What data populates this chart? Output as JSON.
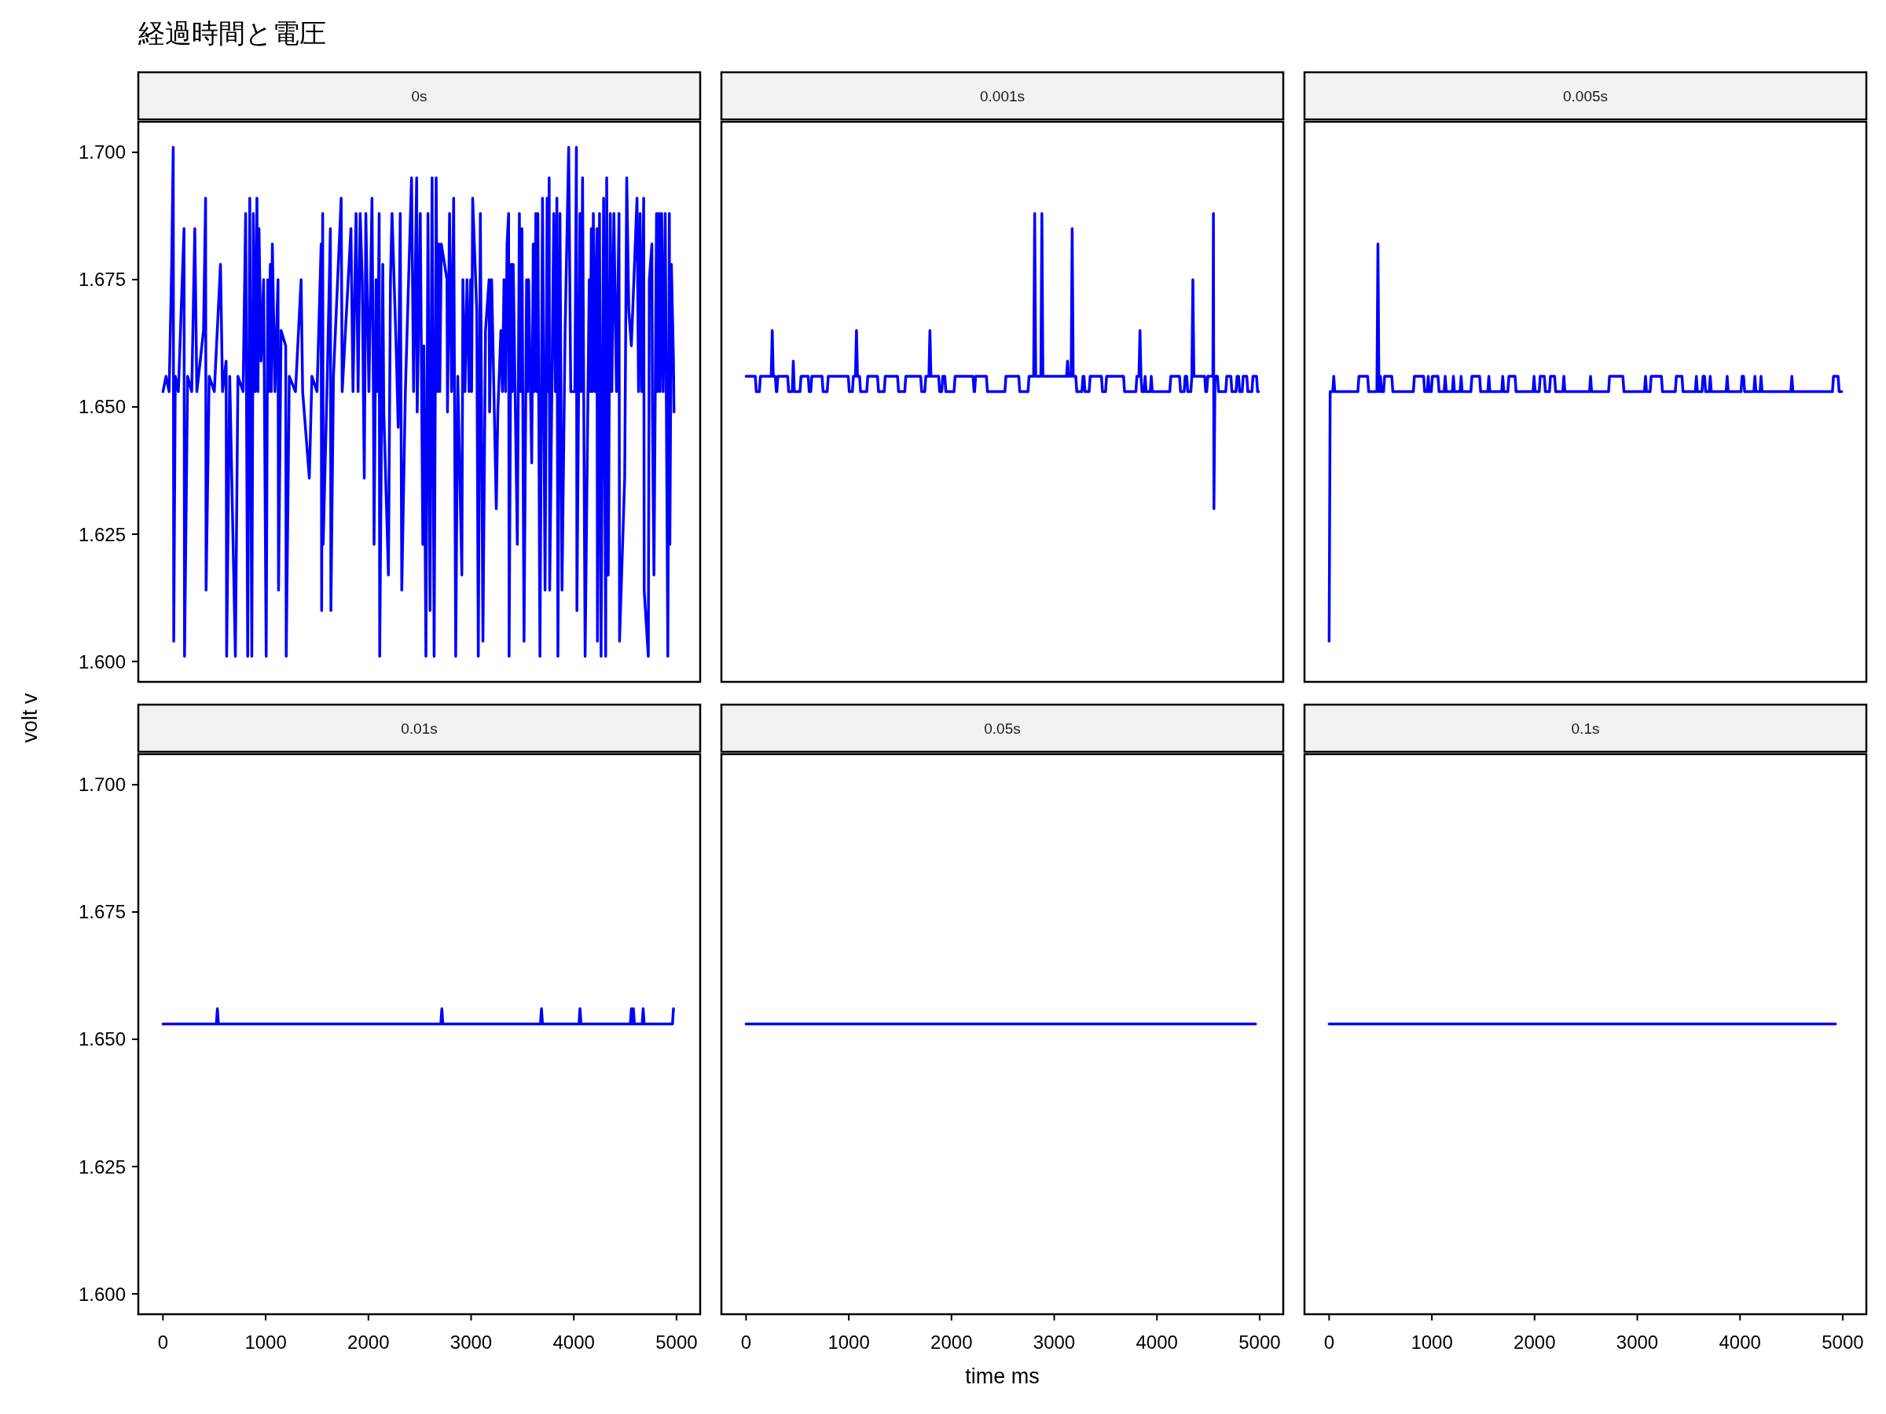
{
  "chart_data": [
    {
      "type": "line",
      "title": "経過時間と電圧",
      "subtitle": "0s",
      "ylabel": "volt v",
      "xlim": [
        -240,
        5230
      ],
      "ylim": [
        1.596,
        1.706
      ],
      "yticks": [
        {
          "value": 1.6,
          "label": "1.600"
        },
        {
          "value": 1.625,
          "label": "1.625"
        },
        {
          "value": 1.65,
          "label": "1.650"
        },
        {
          "value": 1.675,
          "label": "1.675"
        },
        {
          "value": 1.7,
          "label": "1.700"
        }
      ],
      "tick_labels": "y",
      "x": [
        0,
        30,
        60,
        85,
        100,
        105,
        120,
        150,
        205,
        210,
        240,
        280,
        310,
        330,
        395,
        415,
        420,
        450,
        500,
        560,
        580,
        615,
        620,
        650,
        705,
        730,
        780,
        805,
        825,
        845,
        865,
        880,
        898,
        915,
        925,
        935,
        955,
        980,
        1005,
        1020,
        1030,
        1045,
        1055,
        1065,
        1090,
        1120,
        1125,
        1150,
        1195,
        1200,
        1230,
        1290,
        1345,
        1360,
        1425,
        1450,
        1500,
        1540,
        1545,
        1555,
        1560,
        1600,
        1630,
        1635,
        1660,
        1735,
        1745,
        1830,
        1850,
        1880,
        1900,
        1920,
        1940,
        1960,
        1975,
        2005,
        2035,
        2050,
        2055,
        2075,
        2090,
        2105,
        2110,
        2140,
        2150,
        2195,
        2215,
        2230,
        2270,
        2290,
        2310,
        2325,
        2360,
        2420,
        2440,
        2470,
        2475,
        2505,
        2530,
        2540,
        2560,
        2580,
        2600,
        2620,
        2640,
        2660,
        2672,
        2685,
        2695,
        2710,
        2765,
        2770,
        2790,
        2810,
        2830,
        2850,
        2870,
        2910,
        2920,
        2940,
        2960,
        2980,
        2995,
        3005,
        3015,
        3055,
        3070,
        3090,
        3115,
        3140,
        3175,
        3180,
        3200,
        3245,
        3260,
        3290,
        3305,
        3320,
        3335,
        3350,
        3365,
        3370,
        3390,
        3400,
        3410,
        3450,
        3470,
        3480,
        3495,
        3515,
        3540,
        3550,
        3560,
        3590,
        3605,
        3615,
        3630,
        3640,
        3650,
        3670,
        3695,
        3720,
        3740,
        3750,
        3760,
        3765,
        3805,
        3820,
        3835,
        3845,
        3865,
        3885,
        3915,
        3950,
        3970,
        4010,
        4025,
        4030,
        4060,
        4070,
        4085,
        4110,
        4130,
        4150,
        4160,
        4170,
        4180,
        4190,
        4205,
        4225,
        4230,
        4250,
        4265,
        4290,
        4310,
        4320,
        4335,
        4355,
        4370,
        4390,
        4415,
        4440,
        4445,
        4495,
        4515,
        4535,
        4560,
        4615,
        4630,
        4645,
        4660,
        4680,
        4685,
        4725,
        4735,
        4760,
        4765,
        4780,
        4805,
        4815,
        4830,
        4840,
        4855,
        4870,
        4890,
        4915,
        4930,
        4935,
        4950,
        4970,
        4975
      ],
      "series": [
        {
          "color": "#0000ff",
          "values": [
            1.653,
            1.656,
            1.653,
            1.678,
            1.701,
            1.604,
            1.656,
            1.653,
            1.685,
            1.601,
            1.656,
            1.653,
            1.685,
            1.653,
            1.665,
            1.691,
            1.614,
            1.656,
            1.653,
            1.678,
            1.653,
            1.659,
            1.601,
            1.656,
            1.601,
            1.656,
            1.653,
            1.688,
            1.601,
            1.691,
            1.601,
            1.688,
            1.653,
            1.691,
            1.653,
            1.685,
            1.659,
            1.675,
            1.601,
            1.675,
            1.653,
            1.678,
            1.653,
            1.682,
            1.653,
            1.675,
            1.614,
            1.665,
            1.662,
            1.601,
            1.656,
            1.653,
            1.675,
            1.653,
            1.636,
            1.656,
            1.653,
            1.682,
            1.61,
            1.688,
            1.623,
            1.656,
            1.685,
            1.61,
            1.656,
            1.691,
            1.653,
            1.685,
            1.653,
            1.688,
            1.653,
            1.688,
            1.675,
            1.636,
            1.688,
            1.653,
            1.691,
            1.649,
            1.623,
            1.675,
            1.653,
            1.688,
            1.601,
            1.678,
            1.649,
            1.617,
            1.675,
            1.688,
            1.662,
            1.646,
            1.688,
            1.614,
            1.653,
            1.695,
            1.653,
            1.695,
            1.649,
            1.688,
            1.623,
            1.662,
            1.601,
            1.688,
            1.61,
            1.695,
            1.601,
            1.695,
            1.653,
            1.682,
            1.653,
            1.682,
            1.675,
            1.649,
            1.688,
            1.653,
            1.691,
            1.601,
            1.656,
            1.617,
            1.675,
            1.653,
            1.675,
            1.653,
            1.675,
            1.653,
            1.691,
            1.669,
            1.601,
            1.688,
            1.604,
            1.665,
            1.675,
            1.649,
            1.675,
            1.63,
            1.649,
            1.665,
            1.653,
            1.675,
            1.653,
            1.682,
            1.688,
            1.601,
            1.678,
            1.653,
            1.678,
            1.623,
            1.688,
            1.653,
            1.685,
            1.604,
            1.675,
            1.653,
            1.675,
            1.639,
            1.682,
            1.653,
            1.688,
            1.653,
            1.688,
            1.601,
            1.691,
            1.614,
            1.691,
            1.653,
            1.695,
            1.614,
            1.688,
            1.653,
            1.691,
            1.601,
            1.688,
            1.614,
            1.665,
            1.701,
            1.653,
            1.653,
            1.701,
            1.61,
            1.688,
            1.653,
            1.695,
            1.601,
            1.639,
            1.675,
            1.653,
            1.685,
            1.653,
            1.688,
            1.653,
            1.685,
            1.604,
            1.688,
            1.601,
            1.691,
            1.601,
            1.695,
            1.617,
            1.688,
            1.653,
            1.688,
            1.653,
            1.688,
            1.604,
            1.636,
            1.695,
            1.669,
            1.662,
            1.691,
            1.653,
            1.688,
            1.653,
            1.691,
            1.614,
            1.601,
            1.675,
            1.682,
            1.649,
            1.617,
            1.688,
            1.653,
            1.688,
            1.653,
            1.688,
            1.653,
            1.688,
            1.601,
            1.688,
            1.623,
            1.678,
            1.659,
            1.649
          ]
        }
      ]
    },
    {
      "type": "line",
      "subtitle": "0.001s",
      "xlim": [
        -240,
        5230
      ],
      "ylim": [
        1.596,
        1.706
      ],
      "tick_labels": false,
      "x": [
        0,
        90,
        100,
        130,
        140,
        245,
        255,
        265,
        285,
        295,
        300,
        310,
        405,
        415,
        450,
        460,
        470,
        525,
        535,
        605,
        615,
        630,
        640,
        740,
        750,
        790,
        800,
        995,
        1005,
        1035,
        1045,
        1065,
        1075,
        1085,
        1105,
        1115,
        1175,
        1185,
        1280,
        1290,
        1345,
        1355,
        1475,
        1485,
        1545,
        1555,
        1700,
        1710,
        1740,
        1750,
        1780,
        1790,
        1800,
        1875,
        1885,
        1905,
        1915,
        1935,
        1945,
        2025,
        2035,
        2210,
        2220,
        2225,
        2235,
        2340,
        2350,
        2520,
        2530,
        2655,
        2665,
        2745,
        2755,
        2800,
        2810,
        2820,
        2870,
        2880,
        2890,
        3120,
        3130,
        3140,
        3165,
        3175,
        3185,
        3210,
        3220,
        3270,
        3280,
        3290,
        3300,
        3340,
        3350,
        3460,
        3470,
        3500,
        3510,
        3675,
        3685,
        3795,
        3805,
        3825,
        3835,
        3845,
        3855,
        3875,
        3885,
        3895,
        3935,
        3945,
        3955,
        4125,
        4135,
        4220,
        4230,
        4265,
        4275,
        4290,
        4300,
        4330,
        4340,
        4350,
        4360,
        4465,
        4475,
        4485,
        4495,
        4545,
        4550,
        4555,
        4565,
        4590,
        4600,
        4670,
        4680,
        4720,
        4730,
        4770,
        4780,
        4795,
        4805,
        4830,
        4840,
        4875,
        4885,
        4925,
        4935,
        4970,
        4980,
        4990
      ],
      "series": [
        {
          "color": "#0000ff",
          "values": [
            1.656,
            1.656,
            1.653,
            1.653,
            1.656,
            1.656,
            1.665,
            1.656,
            1.656,
            1.653,
            1.653,
            1.656,
            1.656,
            1.653,
            1.653,
            1.659,
            1.653,
            1.653,
            1.656,
            1.656,
            1.653,
            1.653,
            1.656,
            1.656,
            1.653,
            1.653,
            1.656,
            1.656,
            1.653,
            1.653,
            1.656,
            1.656,
            1.665,
            1.656,
            1.656,
            1.653,
            1.653,
            1.656,
            1.656,
            1.653,
            1.653,
            1.656,
            1.656,
            1.653,
            1.653,
            1.656,
            1.656,
            1.653,
            1.653,
            1.656,
            1.656,
            1.665,
            1.656,
            1.656,
            1.653,
            1.653,
            1.656,
            1.656,
            1.653,
            1.653,
            1.656,
            1.656,
            1.653,
            1.653,
            1.656,
            1.656,
            1.653,
            1.653,
            1.656,
            1.656,
            1.653,
            1.653,
            1.656,
            1.656,
            1.688,
            1.656,
            1.656,
            1.688,
            1.656,
            1.656,
            1.659,
            1.656,
            1.656,
            1.685,
            1.656,
            1.656,
            1.653,
            1.653,
            1.656,
            1.656,
            1.653,
            1.653,
            1.656,
            1.656,
            1.653,
            1.653,
            1.656,
            1.656,
            1.653,
            1.653,
            1.656,
            1.656,
            1.665,
            1.656,
            1.653,
            1.653,
            1.656,
            1.653,
            1.653,
            1.656,
            1.653,
            1.653,
            1.656,
            1.656,
            1.653,
            1.653,
            1.656,
            1.656,
            1.653,
            1.653,
            1.656,
            1.675,
            1.656,
            1.656,
            1.653,
            1.653,
            1.656,
            1.656,
            1.688,
            1.63,
            1.656,
            1.656,
            1.653,
            1.653,
            1.656,
            1.656,
            1.653,
            1.653,
            1.656,
            1.656,
            1.653,
            1.653,
            1.656,
            1.656,
            1.653,
            1.653,
            1.656,
            1.656,
            1.653,
            1.653
          ]
        }
      ]
    },
    {
      "type": "line",
      "subtitle": "0.005s",
      "xlim": [
        -240,
        5230
      ],
      "ylim": [
        1.596,
        1.706
      ],
      "tick_labels": false,
      "x": [
        0,
        10,
        35,
        45,
        55,
        280,
        290,
        375,
        385,
        465,
        475,
        485,
        490,
        500,
        510,
        530,
        540,
        610,
        620,
        820,
        830,
        920,
        930,
        955,
        965,
        975,
        995,
        1005,
        1060,
        1070,
        1120,
        1130,
        1140,
        1200,
        1210,
        1220,
        1275,
        1285,
        1295,
        1380,
        1390,
        1465,
        1475,
        1545,
        1555,
        1565,
        1680,
        1690,
        1700,
        1740,
        1750,
        1810,
        1820,
        1985,
        1995,
        2005,
        2045,
        2055,
        2095,
        2105,
        2145,
        2155,
        2195,
        2205,
        2275,
        2285,
        2295,
        2535,
        2545,
        2555,
        2720,
        2730,
        2860,
        2870,
        3070,
        3080,
        3090,
        3125,
        3135,
        3235,
        3245,
        3370,
        3380,
        3435,
        3445,
        3565,
        3575,
        3585,
        3630,
        3640,
        3655,
        3665,
        3700,
        3710,
        3720,
        3865,
        3875,
        3885,
        4010,
        4020,
        4035,
        4045,
        4135,
        4145,
        4155,
        4195,
        4205,
        4215,
        4495,
        4505,
        4515,
        4900,
        4910,
        4955,
        4965,
        4990
      ],
      "series": [
        {
          "color": "#0000ff",
          "values": [
            1.604,
            1.653,
            1.653,
            1.656,
            1.653,
            1.653,
            1.656,
            1.656,
            1.653,
            1.653,
            1.682,
            1.653,
            1.653,
            1.656,
            1.653,
            1.653,
            1.656,
            1.656,
            1.653,
            1.653,
            1.656,
            1.656,
            1.653,
            1.653,
            1.656,
            1.653,
            1.653,
            1.656,
            1.656,
            1.653,
            1.653,
            1.656,
            1.653,
            1.653,
            1.656,
            1.653,
            1.653,
            1.656,
            1.653,
            1.653,
            1.656,
            1.656,
            1.653,
            1.653,
            1.656,
            1.653,
            1.653,
            1.656,
            1.653,
            1.653,
            1.656,
            1.656,
            1.653,
            1.653,
            1.656,
            1.653,
            1.653,
            1.656,
            1.656,
            1.653,
            1.653,
            1.656,
            1.656,
            1.653,
            1.653,
            1.656,
            1.653,
            1.653,
            1.656,
            1.653,
            1.653,
            1.656,
            1.656,
            1.653,
            1.653,
            1.656,
            1.653,
            1.653,
            1.656,
            1.656,
            1.653,
            1.653,
            1.656,
            1.656,
            1.653,
            1.653,
            1.656,
            1.653,
            1.653,
            1.656,
            1.656,
            1.653,
            1.653,
            1.656,
            1.653,
            1.653,
            1.656,
            1.653,
            1.653,
            1.656,
            1.656,
            1.653,
            1.653,
            1.656,
            1.653,
            1.653,
            1.656,
            1.653,
            1.653,
            1.656,
            1.653,
            1.653,
            1.656,
            1.656,
            1.653,
            1.653
          ]
        }
      ]
    },
    {
      "type": "line",
      "subtitle": "0.01s",
      "xlim": [
        -240,
        5230
      ],
      "ylim": [
        1.596,
        1.706
      ],
      "xticks": [
        0,
        1000,
        2000,
        3000,
        4000,
        5000
      ],
      "yticks": [
        {
          "value": 1.6,
          "label": "1.600"
        },
        {
          "value": 1.625,
          "label": "1.625"
        },
        {
          "value": 1.65,
          "label": "1.650"
        },
        {
          "value": 1.675,
          "label": "1.675"
        },
        {
          "value": 1.7,
          "label": "1.700"
        }
      ],
      "x": [
        0,
        520,
        530,
        540,
        2705,
        2715,
        2725,
        3675,
        3685,
        3695,
        4050,
        4060,
        4070,
        4550,
        4560,
        4570,
        4580,
        4590,
        4665,
        4675,
        4685,
        4960,
        4970
      ],
      "series": [
        {
          "color": "#0000ff",
          "values": [
            1.653,
            1.653,
            1.656,
            1.653,
            1.653,
            1.656,
            1.653,
            1.653,
            1.656,
            1.653,
            1.653,
            1.656,
            1.653,
            1.653,
            1.656,
            1.653,
            1.656,
            1.653,
            1.653,
            1.656,
            1.653,
            1.653,
            1.656
          ]
        }
      ]
    },
    {
      "type": "line",
      "subtitle": "0.05s",
      "xlabel": "time ms",
      "xlim": [
        -240,
        5230
      ],
      "ylim": [
        1.596,
        1.706
      ],
      "xticks": [
        0,
        1000,
        2000,
        3000,
        4000,
        5000
      ],
      "tick_labels": "x",
      "x": [
        0,
        4960
      ],
      "series": [
        {
          "color": "#0000ff",
          "values": [
            1.653,
            1.653
          ]
        }
      ]
    },
    {
      "type": "line",
      "subtitle": "0.1s",
      "xlim": [
        -240,
        5230
      ],
      "ylim": [
        1.596,
        1.706
      ],
      "xticks": [
        0,
        1000,
        2000,
        3000,
        4000,
        5000
      ],
      "tick_labels": "x",
      "x": [
        0,
        4930
      ],
      "series": [
        {
          "color": "#0000ff",
          "values": [
            1.653,
            1.653
          ]
        }
      ]
    }
  ]
}
